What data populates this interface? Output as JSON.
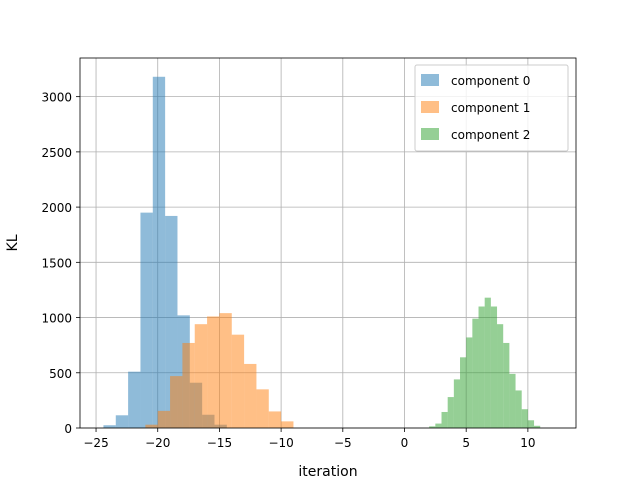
{
  "chart_data": {
    "type": "histogram",
    "title": "",
    "xlabel": "iteration",
    "ylabel": "KL",
    "xlim": [
      -26.3,
      13.9
    ],
    "ylim": [
      0,
      3350
    ],
    "xticks": [
      -25,
      -20,
      -15,
      -10,
      -5,
      0,
      5,
      10
    ],
    "xtick_labels": [
      "−25",
      "−20",
      "−15",
      "−10",
      "−5",
      "0",
      "5",
      "10"
    ],
    "yticks": [
      0,
      500,
      1000,
      1500,
      2000,
      2500,
      3000
    ],
    "ytick_labels": [
      "0",
      "500",
      "1000",
      "1500",
      "2000",
      "2500",
      "3000"
    ],
    "grid": true,
    "legend_position": "top-right",
    "series": [
      {
        "name": "component 0",
        "color": "#1f77b4",
        "opacity": 0.5,
        "bin_edges": [
          -24.4,
          -23.4,
          -22.4,
          -21.4,
          -20.4,
          -19.4,
          -18.4,
          -17.4,
          -16.4,
          -15.4,
          -14.4
        ],
        "counts": [
          25,
          115,
          510,
          1950,
          3180,
          1920,
          1020,
          410,
          120,
          30
        ]
      },
      {
        "name": "component 1",
        "color": "#ff7f0e",
        "opacity": 0.5,
        "bin_edges": [
          -21.0,
          -20.0,
          -19.0,
          -18.0,
          -17.0,
          -16.0,
          -15.0,
          -14.0,
          -13.0,
          -12.0,
          -11.0,
          -10.0,
          -9.0
        ],
        "counts": [
          30,
          155,
          470,
          770,
          940,
          1010,
          1040,
          845,
          580,
          350,
          150,
          60
        ]
      },
      {
        "name": "component 2",
        "color": "#2ca02c",
        "opacity": 0.5,
        "bin_edges": [
          2.0,
          2.5,
          3.0,
          3.5,
          4.0,
          4.5,
          5.0,
          5.5,
          6.0,
          6.5,
          7.0,
          7.5,
          8.0,
          8.5,
          9.0,
          9.5,
          10.0,
          10.5,
          11.0
        ],
        "counts": [
          15,
          40,
          145,
          280,
          440,
          640,
          820,
          990,
          1100,
          1180,
          1100,
          940,
          770,
          490,
          340,
          170,
          70,
          20
        ]
      }
    ]
  }
}
